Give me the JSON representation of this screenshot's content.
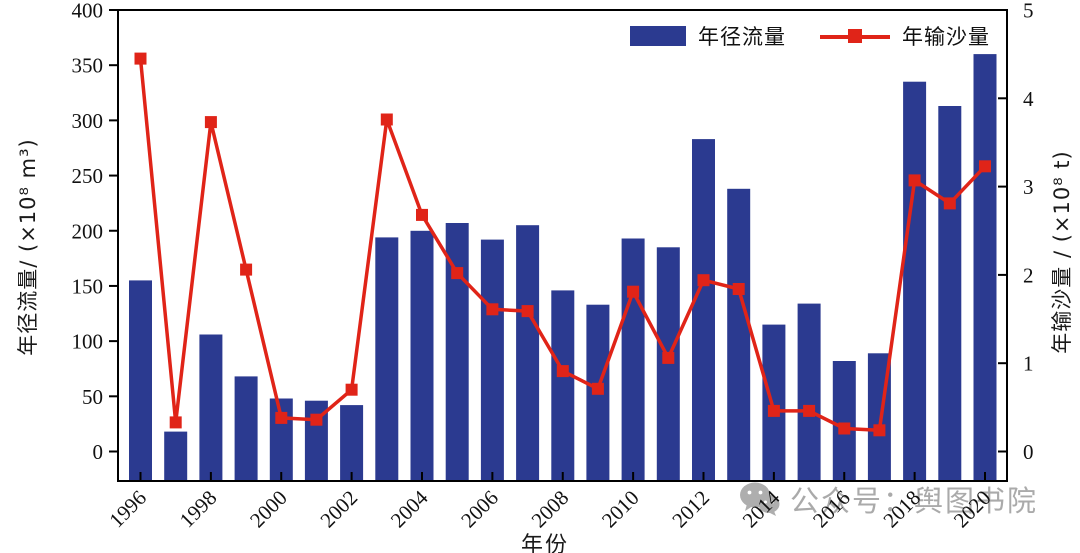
{
  "colors": {
    "bar": "#2B3A90",
    "line": "#E02418",
    "axis": "#000000",
    "tick_label": "#111111",
    "watermark": "#9B9B9B"
  },
  "legend": {
    "bar_label": "年径流量",
    "line_label": "年输沙量"
  },
  "watermark": {
    "text": "公众号：舆图书院"
  },
  "chart_data": {
    "type": "combo",
    "x": [
      1996,
      1997,
      1998,
      1999,
      2000,
      2001,
      2002,
      2003,
      2004,
      2005,
      2006,
      2007,
      2008,
      2009,
      2010,
      2011,
      2012,
      2013,
      2014,
      2015,
      2016,
      2017,
      2018,
      2019,
      2020
    ],
    "series": [
      {
        "name": "年径流量",
        "type": "bar",
        "axis": "left",
        "values": [
          155,
          18,
          106,
          68,
          48,
          46,
          42,
          194,
          200,
          207,
          192,
          205,
          146,
          133,
          193,
          185,
          283,
          238,
          115,
          134,
          82,
          89,
          335,
          313,
          360
        ]
      },
      {
        "name": "年输沙量",
        "type": "line",
        "axis": "right",
        "values": [
          4.45,
          0.33,
          3.73,
          2.06,
          0.38,
          0.36,
          0.7,
          3.76,
          2.68,
          2.02,
          1.61,
          1.59,
          0.91,
          0.71,
          1.81,
          1.06,
          1.94,
          1.84,
          0.46,
          0.46,
          0.26,
          0.24,
          3.07,
          2.81,
          3.23
        ]
      }
    ],
    "title": "",
    "xlabel": "年份",
    "ylabel_left": "年径流量/ (×10⁸ m³)",
    "ylabel_right": "年输沙量 / (×10⁸ t)",
    "ylim_left": [
      0,
      400
    ],
    "ylim_right": [
      0,
      5
    ],
    "yticks_left": [
      0,
      50,
      100,
      150,
      200,
      250,
      300,
      350,
      400
    ],
    "yticks_right": [
      0,
      1,
      2,
      3,
      4,
      5
    ],
    "xticks": [
      1996,
      1998,
      2000,
      2002,
      2004,
      2006,
      2008,
      2010,
      2012,
      2014,
      2016,
      2018,
      2020
    ],
    "grid": false,
    "legend_position": "top-right"
  }
}
